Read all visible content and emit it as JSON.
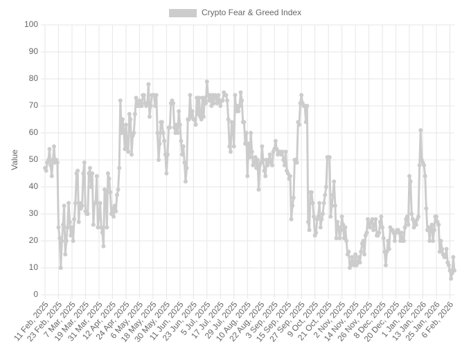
{
  "chart_data": {
    "type": "line",
    "y_label": "Value",
    "legend": "top",
    "grid": true,
    "ylim": [
      0,
      100
    ],
    "yticks": [
      0,
      10,
      20,
      30,
      40,
      50,
      60,
      70,
      80,
      90,
      100
    ],
    "categories": [
      "11 Feb, 2025",
      null,
      null,
      null,
      null,
      null,
      null,
      null,
      null,
      null,
      null,
      null,
      "23 Feb, 2025",
      null,
      null,
      null,
      null,
      null,
      null,
      null,
      null,
      null,
      null,
      null,
      "7 Mar, 2025",
      null,
      null,
      null,
      null,
      null,
      null,
      null,
      null,
      null,
      null,
      null,
      "19 Mar, 2025",
      null,
      null,
      null,
      null,
      null,
      null,
      null,
      null,
      null,
      null,
      null,
      "31 Mar, 2025",
      null,
      null,
      null,
      null,
      null,
      null,
      null,
      null,
      null,
      null,
      null,
      "12 Apr, 2025",
      null,
      null,
      null,
      null,
      null,
      null,
      null,
      null,
      null,
      null,
      null,
      "24 Apr, 2025",
      null,
      null,
      null,
      null,
      null,
      null,
      null,
      null,
      null,
      null,
      null,
      "6 May, 2025",
      null,
      null,
      null,
      null,
      null,
      null,
      null,
      null,
      null,
      null,
      null,
      "18 May, 2025",
      null,
      null,
      null,
      null,
      null,
      null,
      null,
      null,
      null,
      null,
      null,
      "30 May, 2025",
      null,
      null,
      null,
      null,
      null,
      null,
      null,
      null,
      null,
      null,
      null,
      "11 Jun, 2025",
      null,
      null,
      null,
      null,
      null,
      null,
      null,
      null,
      null,
      null,
      null,
      "23 Jun, 2025",
      null,
      null,
      null,
      null,
      null,
      null,
      null,
      null,
      null,
      null,
      null,
      "5 Jul, 2025",
      null,
      null,
      null,
      null,
      null,
      null,
      null,
      null,
      null,
      null,
      null,
      "17 Jul, 2025",
      null,
      null,
      null,
      null,
      null,
      null,
      null,
      null,
      null,
      null,
      null,
      "29 Jul, 2025",
      null,
      null,
      null,
      null,
      null,
      null,
      null,
      null,
      null,
      null,
      null,
      "10 Aug, 2025",
      null,
      null,
      null,
      null,
      null,
      null,
      null,
      null,
      null,
      null,
      null,
      "22 Aug, 2025",
      null,
      null,
      null,
      null,
      null,
      null,
      null,
      null,
      null,
      null,
      null,
      "3 Sep, 2025",
      null,
      null,
      null,
      null,
      null,
      null,
      null,
      null,
      null,
      null,
      null,
      "15 Sep, 2025",
      null,
      null,
      null,
      null,
      null,
      null,
      null,
      null,
      null,
      null,
      null,
      "27 Sep, 2025",
      null,
      null,
      null,
      null,
      null,
      null,
      null,
      null,
      null,
      null,
      null,
      "9 Oct, 2025",
      null,
      null,
      null,
      null,
      null,
      null,
      null,
      null,
      null,
      null,
      null,
      "21 Oct, 2025",
      null,
      null,
      null,
      null,
      null,
      null,
      null,
      null,
      null,
      null,
      null,
      "2 Nov, 2025",
      null,
      null,
      null,
      null,
      null,
      null,
      null,
      null,
      null,
      null,
      null,
      "14 Nov, 2025",
      null,
      null,
      null,
      null,
      null,
      null,
      null,
      null,
      null,
      null,
      null,
      "26 Nov, 2025",
      null,
      null,
      null,
      null,
      null,
      null,
      null,
      null,
      null,
      null,
      null,
      "8 Dec, 2025",
      null,
      null,
      null,
      null,
      null,
      null,
      null,
      null,
      null,
      null,
      null,
      "20 Dec, 2025",
      null,
      null,
      null,
      null,
      null,
      null,
      null,
      null,
      null,
      null,
      null,
      "1 Jan, 2026",
      null,
      null,
      null,
      null,
      null,
      null,
      null,
      null,
      null,
      null,
      null,
      "13 Jan, 2026",
      null,
      null,
      null,
      null,
      null,
      null,
      null,
      null,
      null,
      null,
      null,
      "25 Jan, 2026",
      null,
      null,
      null,
      null,
      null,
      null,
      null,
      null,
      null,
      null,
      null,
      "6 Feb, 2026",
      null,
      null,
      null,
      null
    ],
    "series": [
      {
        "name": "Crypto Fear & Greed Index",
        "color": "#cccccc",
        "values": [
          47,
          46,
          49,
          50,
          54,
          48,
          44,
          50,
          55,
          49,
          50,
          49,
          25,
          21,
          10,
          20,
          26,
          33,
          15,
          20,
          25,
          34,
          27,
          22,
          25,
          20,
          28,
          34,
          45,
          46,
          27,
          34,
          32,
          33,
          45,
          49,
          31,
          30,
          30,
          45,
          47,
          40,
          45,
          26,
          34,
          34,
          44,
          25,
          29,
          34,
          25,
          23,
          18,
          39,
          38,
          25,
          45,
          43,
          38,
          30,
          32,
          29,
          33,
          31,
          37,
          39,
          47,
          72,
          60,
          65,
          61,
          54,
          63,
          55,
          53,
          67,
          65,
          52,
          59,
          60,
          67,
          73,
          70,
          70,
          72,
          70,
          70,
          74,
          74,
          71,
          70,
          71,
          78,
          66,
          70,
          74,
          74,
          74,
          70,
          74,
          60,
          50,
          56,
          64,
          64,
          60,
          57,
          52,
          45,
          52,
          62,
          62,
          71,
          72,
          71,
          62,
          60,
          63,
          60,
          68,
          63,
          57,
          52,
          55,
          49,
          42,
          47,
          65,
          65,
          74,
          66,
          68,
          65,
          65,
          63,
          73,
          67,
          73,
          66,
          65,
          73,
          66,
          73,
          71,
          79,
          74,
          72,
          74,
          70,
          74,
          71,
          74,
          73,
          71,
          74,
          72,
          70,
          72,
          72,
          75,
          74,
          74,
          72,
          65,
          55,
          53,
          64,
          62,
          55,
          74,
          68,
          70,
          68,
          70,
          75,
          72,
          64,
          64,
          56,
          60,
          44,
          56,
          51,
          60,
          53,
          48,
          49,
          51,
          47,
          50,
          39,
          48,
          49,
          55,
          50,
          46,
          44,
          50,
          48,
          50,
          52,
          49,
          48,
          53,
          54,
          57,
          54,
          52,
          53,
          53,
          52,
          53,
          50,
          48,
          53,
          46,
          45,
          43,
          44,
          28,
          33,
          36,
          50,
          50,
          49,
          64,
          63,
          71,
          74,
          71,
          70,
          70,
          64,
          70,
          27,
          24,
          38,
          38,
          34,
          29,
          22,
          23,
          28,
          29,
          34,
          25,
          28,
          30,
          34,
          37,
          40,
          51,
          51,
          51,
          29,
          33,
          37,
          42,
          33,
          21,
          27,
          25,
          21,
          24,
          29,
          26,
          21,
          25,
          20,
          15,
          16,
          10,
          11,
          14,
          12,
          11,
          15,
          11,
          12,
          14,
          12,
          16,
          19,
          20,
          15,
          22,
          23,
          28,
          26,
          25,
          27,
          28,
          24,
          26,
          28,
          22,
          22,
          23,
          27,
          29,
          25,
          21,
          16,
          11,
          16,
          20,
          17,
          25,
          24,
          24,
          23,
          20,
          23,
          24,
          24,
          23,
          20,
          23,
          20,
          20,
          25,
          28,
          29,
          26,
          44,
          42,
          30,
          28,
          25,
          27,
          26,
          28,
          29,
          48,
          61,
          50,
          49,
          48,
          44,
          32,
          24,
          25,
          20,
          25,
          26,
          20,
          24,
          29,
          29,
          27,
          26,
          16,
          20,
          17,
          15,
          14,
          14,
          17,
          12,
          11,
          9,
          6,
          8,
          14,
          9
        ]
      }
    ]
  }
}
